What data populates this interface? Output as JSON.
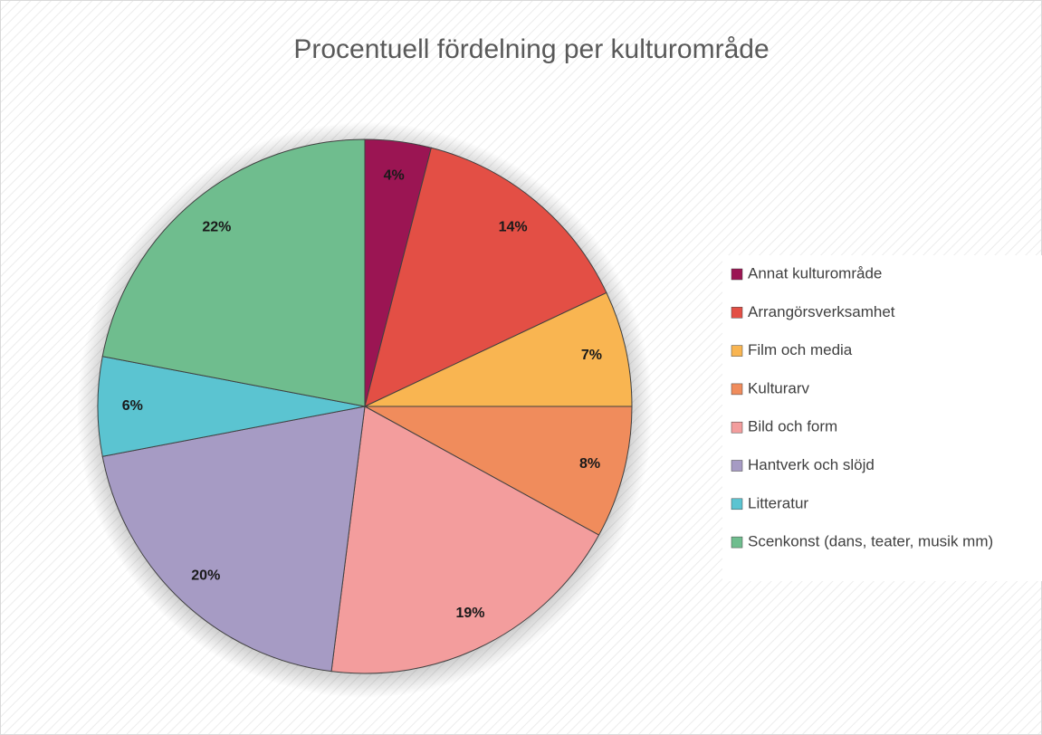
{
  "chart_data": {
    "type": "pie",
    "title": "Procentuell fördelning per kulturområde",
    "categories": [
      "Annat kulturområde",
      "Arrangörsverksamhet",
      "Film och media",
      "Kulturarv",
      "Bild och form",
      "Hantverk och slöjd",
      "Litteratur",
      "Scenkonst (dans, teater, musik mm)"
    ],
    "values": [
      4,
      14,
      7,
      8,
      19,
      20,
      6,
      22
    ],
    "value_labels": [
      "4%",
      "14%",
      "7%",
      "8%",
      "19%",
      "20%",
      "6%",
      "22%"
    ],
    "colors": [
      "#9b1553",
      "#e34f45",
      "#f9b551",
      "#f08c5c",
      "#f39d9d",
      "#a69bc4",
      "#5bc4d1",
      "#6fbd8e"
    ],
    "legend": "right"
  }
}
